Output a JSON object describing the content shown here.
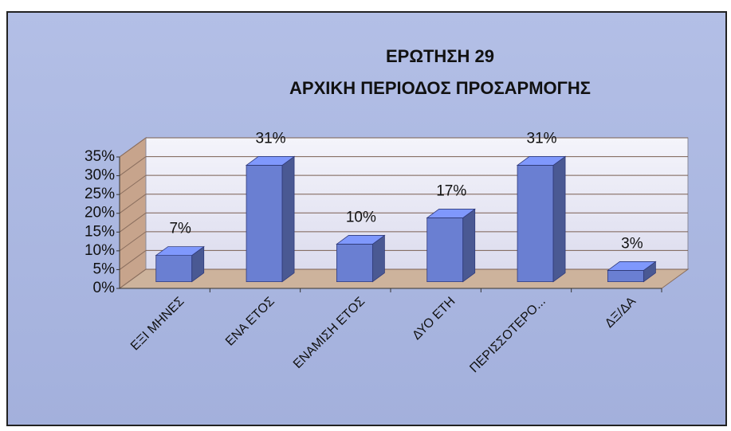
{
  "chart_data": {
    "type": "bar3d",
    "title": "ΕΡΩΤΗΣΗ 29",
    "subtitle": "ΑΡΧΙΚΗ ΠΕΡΙΟΔΟΣ ΠΡΟΣΑΡΜΟΓΗΣ",
    "categories": [
      "ΕΞΙ ΜΗΝΕΣ",
      "ΕΝΑ ΕΤΟΣ",
      "ΕΝΑΜΙΣΗ ΕΤΟΣ",
      "ΔΥΟ ΕΤΗ",
      "ΠΕΡΙΣΣΟΤΕΡΟ...",
      "ΔΞ/ΔΑ"
    ],
    "values": [
      7,
      31,
      10,
      17,
      31,
      3
    ],
    "value_labels": [
      "7%",
      "31%",
      "10%",
      "17%",
      "31%",
      "3%"
    ],
    "color": "#6a7fd2",
    "ylim": [
      0,
      35
    ],
    "yticks": [
      {
        "value": 0,
        "label": "0%"
      },
      {
        "value": 5,
        "label": "5%"
      },
      {
        "value": 10,
        "label": "10%"
      },
      {
        "value": 15,
        "label": "15%"
      },
      {
        "value": 20,
        "label": "20%"
      },
      {
        "value": 25,
        "label": "25%"
      },
      {
        "value": 30,
        "label": "30%"
      },
      {
        "value": 35,
        "label": "35%"
      }
    ],
    "grid": true
  }
}
